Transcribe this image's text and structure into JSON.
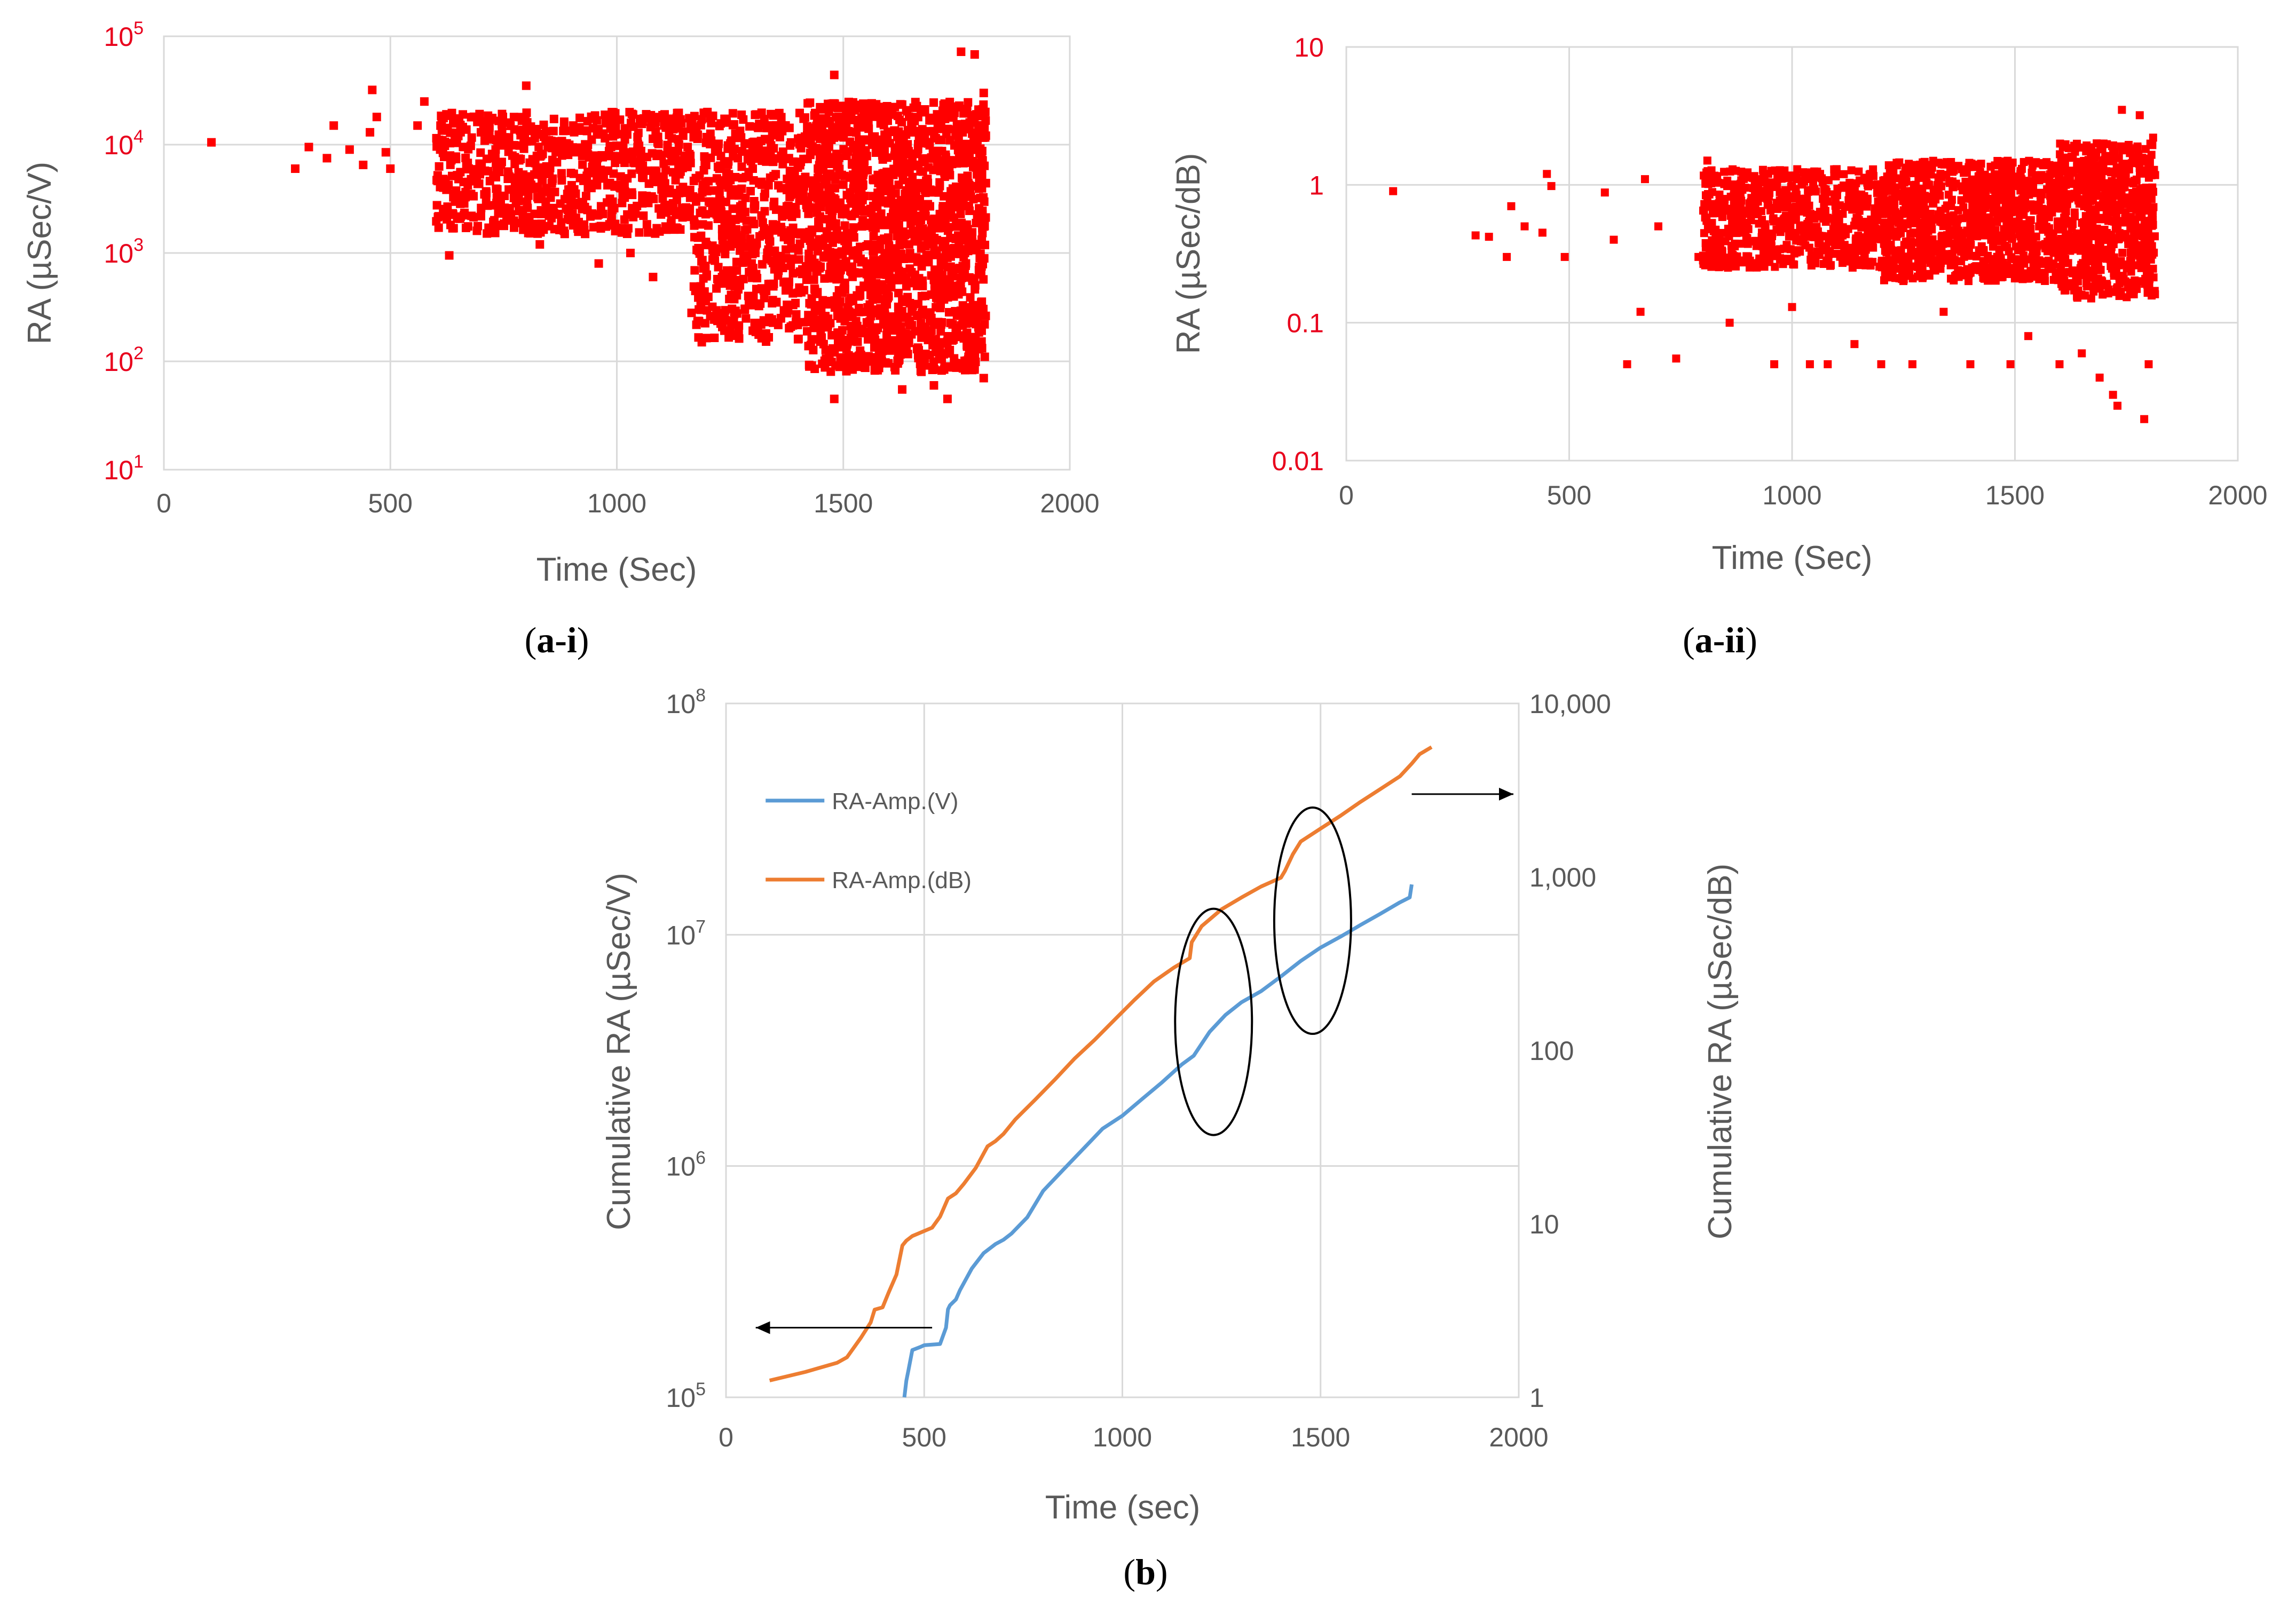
{
  "chart_data": [
    {
      "id": "a-i",
      "type": "scatter",
      "panel_label": "a-i",
      "xlabel": "Time (Sec)",
      "ylabel": "RA (µSec/V)",
      "xlim": [
        0,
        2000
      ],
      "ylim": [
        10,
        100000
      ],
      "yscale": "log",
      "x_ticks": [
        "0",
        "500",
        "1000",
        "1500",
        "2000"
      ],
      "y_ticks": [
        {
          "base": "10",
          "exp": "1"
        },
        {
          "base": "10",
          "exp": "2"
        },
        {
          "base": "10",
          "exp": "3"
        },
        {
          "base": "10",
          "exp": "4"
        },
        {
          "base": "10",
          "exp": "5"
        }
      ],
      "marker_color": "#ff0000",
      "y_tick_color": "#e8001c",
      "series": [
        {
          "name": "RA",
          "points": [
            [
              105,
              10500
            ],
            [
              290,
              6000
            ],
            [
              320,
              9500
            ],
            [
              360,
              7500
            ],
            [
              375,
              15000
            ],
            [
              410,
              9000
            ],
            [
              440,
              6500
            ],
            [
              455,
              13000
            ],
            [
              460,
              32000
            ],
            [
              470,
              18000
            ],
            [
              490,
              8500
            ],
            [
              500,
              6000
            ],
            [
              560,
              15000
            ],
            [
              575,
              25000
            ],
            [
              610,
              9000
            ],
            [
              630,
              950
            ],
            [
              650,
              12000
            ],
            [
              660,
              19000
            ],
            [
              700,
              13000
            ],
            [
              720,
              17000
            ],
            [
              780,
              4200
            ],
            [
              800,
              35000
            ],
            [
              830,
              1200
            ],
            [
              860,
              2600
            ],
            [
              900,
              3000
            ],
            [
              930,
              1500
            ],
            [
              960,
              800
            ],
            [
              990,
              2500
            ],
            [
              1030,
              1000
            ],
            [
              1080,
              600
            ],
            [
              1120,
              1800
            ],
            [
              1165,
              280
            ],
            [
              1200,
              20000
            ],
            [
              1250,
              500
            ],
            [
              1280,
              900
            ],
            [
              1300,
              6000
            ],
            [
              1350,
              350
            ],
            [
              1400,
              160
            ],
            [
              1450,
              3000
            ],
            [
              1480,
              44000
            ],
            [
              1480,
              45
            ],
            [
              1520,
              280
            ],
            [
              1600,
              200
            ],
            [
              1630,
              55
            ],
            [
              1700,
              60
            ],
            [
              1730,
              45
            ],
            [
              1760,
              72000
            ],
            [
              1790,
              68000
            ],
            [
              1810,
              30000
            ],
            [
              1810,
              70
            ]
          ]
        }
      ],
      "dense_regions": [
        {
          "x_range": [
            600,
            1170
          ],
          "y_range": [
            1500,
            20000
          ],
          "density": 0.6
        },
        {
          "x_range": [
            1170,
            1420
          ],
          "y_range": [
            150,
            20000
          ],
          "density": 1.0
        },
        {
          "x_range": [
            1420,
            1815
          ],
          "y_range": [
            80,
            25000
          ],
          "density": 1.8
        }
      ]
    },
    {
      "id": "a-ii",
      "type": "scatter",
      "panel_label": "a-ii",
      "xlabel": "Time (Sec)",
      "ylabel": "RA (µSec/dB)",
      "xlim": [
        0,
        2000
      ],
      "ylim": [
        0.01,
        10
      ],
      "yscale": "log",
      "x_ticks": [
        "0",
        "500",
        "1000",
        "1500",
        "2000"
      ],
      "y_ticks": [
        "0.01",
        "0.1",
        "1",
        "10"
      ],
      "marker_color": "#ff0000",
      "series": [
        {
          "name": "RA",
          "points": [
            [
              105,
              0.9
            ],
            [
              290,
              0.43
            ],
            [
              320,
              0.42
            ],
            [
              360,
              0.3
            ],
            [
              370,
              0.7
            ],
            [
              400,
              0.5
            ],
            [
              440,
              0.45
            ],
            [
              450,
              1.2
            ],
            [
              460,
              0.98
            ],
            [
              490,
              0.3
            ],
            [
              580,
              0.88
            ],
            [
              600,
              0.4
            ],
            [
              630,
              0.05
            ],
            [
              660,
              0.12
            ],
            [
              670,
              1.1
            ],
            [
              700,
              0.5
            ],
            [
              740,
              0.055
            ],
            [
              790,
              0.3
            ],
            [
              810,
              1.5
            ],
            [
              860,
              0.1
            ],
            [
              960,
              0.05
            ],
            [
              1000,
              0.13
            ],
            [
              1040,
              0.05
            ],
            [
              1080,
              0.05
            ],
            [
              1100,
              1.3
            ],
            [
              1140,
              0.07
            ],
            [
              1200,
              0.05
            ],
            [
              1240,
              0.6
            ],
            [
              1270,
              0.05
            ],
            [
              1340,
              0.12
            ],
            [
              1400,
              0.05
            ],
            [
              1490,
              0.05
            ],
            [
              1530,
              0.08
            ],
            [
              1600,
              0.05
            ],
            [
              1650,
              0.06
            ],
            [
              1690,
              0.04
            ],
            [
              1720,
              0.03
            ],
            [
              1730,
              0.025
            ],
            [
              1740,
              3.5
            ],
            [
              1780,
              3.2
            ],
            [
              1790,
              0.02
            ],
            [
              1800,
              0.05
            ],
            [
              1810,
              2.2
            ]
          ]
        }
      ],
      "dense_regions": [
        {
          "x_range": [
            800,
            1200
          ],
          "y_range": [
            0.25,
            1.3
          ],
          "density": 0.8
        },
        {
          "x_range": [
            1200,
            1600
          ],
          "y_range": [
            0.2,
            1.5
          ],
          "density": 1.2
        },
        {
          "x_range": [
            1600,
            1815
          ],
          "y_range": [
            0.15,
            2.0
          ],
          "density": 1.5
        }
      ]
    },
    {
      "id": "b",
      "type": "line",
      "panel_label": "b",
      "xlabel": "Time (sec)",
      "ylabel": "Cumulative RA (µSec/V)",
      "y2label": "Cumulative RA (µSec/dB)",
      "xlim": [
        0,
        2000
      ],
      "ylim": [
        100000,
        100000000
      ],
      "y2lim": [
        1,
        10000
      ],
      "yscale": "log",
      "y2scale": "log",
      "x_ticks": [
        "0",
        "500",
        "1000",
        "1500",
        "2000"
      ],
      "y_ticks": [
        {
          "base": "10",
          "exp": "5"
        },
        {
          "base": "10",
          "exp": "6"
        },
        {
          "base": "10",
          "exp": "7"
        },
        {
          "base": "10",
          "exp": "8"
        }
      ],
      "y2_ticks": [
        "1",
        "10",
        "100",
        "1,000",
        "10,000"
      ],
      "legend": [
        {
          "name": "RA-Amp.(V)",
          "color": "#5b9bd5"
        },
        {
          "name": "RA-Amp.(dB)",
          "color": "#ed7d31"
        }
      ],
      "series": [
        {
          "name": "RA-Amp.(V)",
          "axis": "left",
          "color": "#5b9bd5",
          "x": [
            450,
            455,
            460,
            470,
            490,
            500,
            540,
            555,
            560,
            565,
            580,
            590,
            620,
            650,
            680,
            700,
            720,
            760,
            800,
            850,
            900,
            950,
            1000,
            1050,
            1100,
            1150,
            1180,
            1220,
            1260,
            1300,
            1350,
            1400,
            1450,
            1500,
            1550,
            1600,
            1650,
            1700,
            1725,
            1730
          ],
          "y": [
            100000,
            118000,
            130000,
            160000,
            165000,
            168000,
            170000,
            200000,
            240000,
            250000,
            265000,
            290000,
            360000,
            420000,
            460000,
            480000,
            510000,
            600000,
            780000,
            960000,
            1180000,
            1450000,
            1650000,
            1950000,
            2300000,
            2750000,
            3000000,
            3800000,
            4500000,
            5100000,
            5700000,
            6600000,
            7700000,
            8800000,
            9800000,
            11000000,
            12300000,
            13800000,
            14500000,
            16500000
          ]
        },
        {
          "name": "RA-Amp.(dB)",
          "axis": "right",
          "color": "#ed7d31",
          "x": [
            110,
            200,
            280,
            305,
            340,
            365,
            375,
            395,
            410,
            430,
            445,
            455,
            470,
            520,
            540,
            560,
            580,
            600,
            630,
            660,
            680,
            700,
            730,
            780,
            830,
            880,
            930,
            980,
            1030,
            1080,
            1130,
            1170,
            1175,
            1200,
            1250,
            1300,
            1350,
            1400,
            1410,
            1430,
            1450,
            1500,
            1550,
            1600,
            1650,
            1700,
            1730,
            1750,
            1780
          ],
          "y": [
            1.25,
            1.4,
            1.58,
            1.7,
            2.2,
            2.7,
            3.2,
            3.3,
            4.0,
            5.1,
            7.5,
            8.0,
            8.5,
            9.5,
            11,
            14,
            15,
            17,
            21,
            28,
            30,
            33,
            40,
            52,
            68,
            90,
            115,
            150,
            195,
            250,
            300,
            340,
            420,
            520,
            650,
            760,
            880,
            990,
            1080,
            1350,
            1600,
            1900,
            2250,
            2700,
            3200,
            3800,
            4500,
            5100,
            5600
          ]
        }
      ],
      "annotations": [
        {
          "type": "ellipse",
          "cx": 1230,
          "cy_left": 4200000
        },
        {
          "type": "ellipse",
          "cx": 1480,
          "cy_left": 11500000
        },
        {
          "type": "arrow",
          "direction": "right",
          "axis": "right"
        },
        {
          "type": "arrow",
          "direction": "left",
          "axis": "left"
        }
      ]
    }
  ]
}
